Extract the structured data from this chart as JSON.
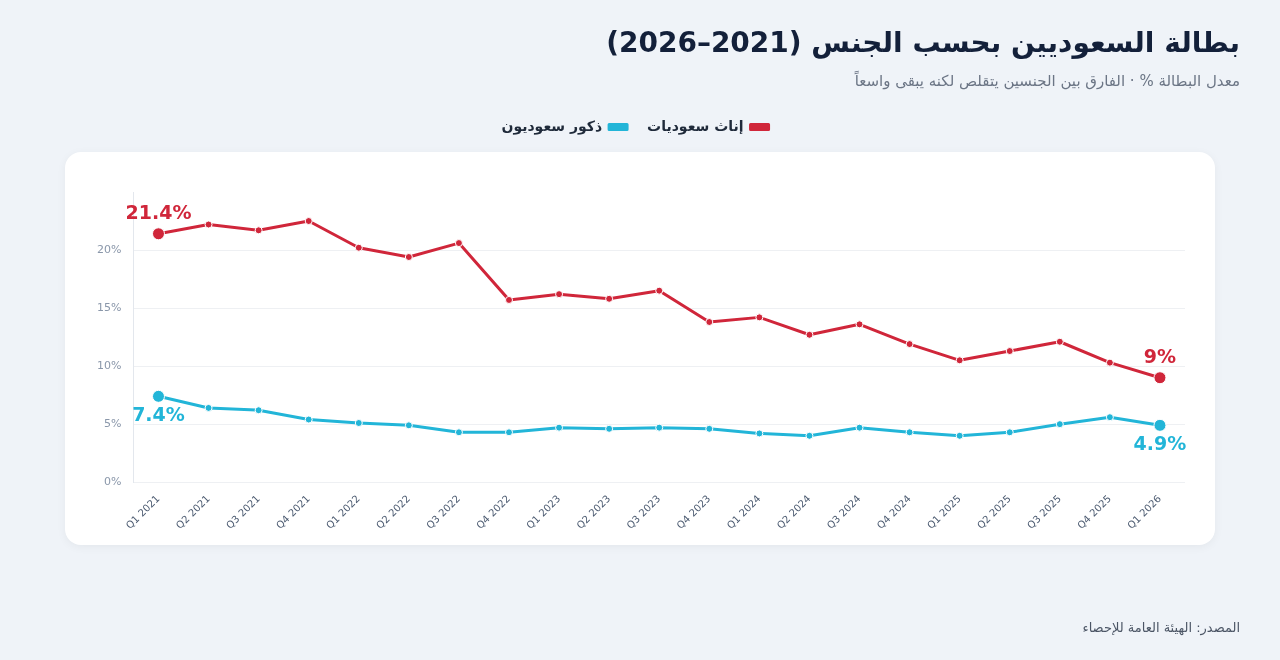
{
  "chart_data": {
    "type": "line",
    "title": "بطالة السعوديين بحسب الجنس (2021–2026)",
    "subtitle": "معدل البطالة % · الفارق بين الجنسين يتقلص لكنه يبقى واسعاً",
    "annotations": [
      "المصدر: الهيئة العامة للإحصاء"
    ],
    "categories": [
      "Q1 2021",
      "Q2 2021",
      "Q3 2021",
      "Q4 2021",
      "Q1 2022",
      "Q2 2022",
      "Q3 2022",
      "Q4 2022",
      "Q1 2023",
      "Q2 2023",
      "Q3 2023",
      "Q4 2023",
      "Q1 2024",
      "Q2 2024",
      "Q3 2024",
      "Q4 2024",
      "Q1 2025",
      "Q2 2025",
      "Q3 2025",
      "Q4 2025",
      "Q1 2026"
    ],
    "series": [
      {
        "name": "إناث سعوديات",
        "color": "#d0263a",
        "values": [
          21.4,
          22.2,
          21.7,
          22.5,
          20.2,
          19.4,
          20.6,
          15.7,
          16.2,
          15.8,
          16.5,
          13.8,
          14.2,
          12.7,
          13.6,
          11.9,
          10.5,
          11.3,
          12.1,
          10.3,
          9
        ],
        "value_labels": [
          "21.4%",
          null,
          null,
          null,
          null,
          null,
          null,
          null,
          null,
          null,
          null,
          null,
          null,
          null,
          null,
          null,
          null,
          null,
          null,
          null,
          "9%"
        ]
      },
      {
        "name": "ذكور سعوديون",
        "color": "#22b5d8",
        "values": [
          7.4,
          6.4,
          6.2,
          5.4,
          5.1,
          4.9,
          4.3,
          4.3,
          4.7,
          4.6,
          4.7,
          4.6,
          4.2,
          4.0,
          4.7,
          4.3,
          4.0,
          4.3,
          5.0,
          5.6,
          4.9
        ],
        "value_labels": [
          "7.4%",
          null,
          null,
          null,
          null,
          null,
          null,
          null,
          null,
          null,
          null,
          null,
          null,
          null,
          null,
          null,
          null,
          null,
          null,
          null,
          "4.9%"
        ]
      }
    ],
    "ylim": [
      0,
      25
    ],
    "yticks": [
      {
        "value": 0,
        "label": "0%"
      },
      {
        "value": 5,
        "label": "5%"
      },
      {
        "value": 10,
        "label": "10%"
      },
      {
        "value": 15,
        "label": "15%"
      },
      {
        "value": 20,
        "label": "20%"
      }
    ],
    "grid": "y",
    "legend": "top",
    "marker": "circle",
    "line_style": "solid"
  }
}
